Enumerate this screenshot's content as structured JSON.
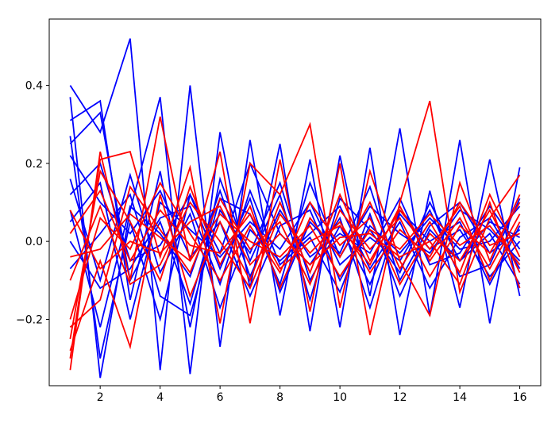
{
  "chart_data": {
    "type": "line",
    "title": "",
    "xlabel": "",
    "ylabel": "",
    "xlim": [
      0.3,
      16.7
    ],
    "ylim": [
      -0.37,
      0.57
    ],
    "xticks": [
      2,
      4,
      6,
      8,
      10,
      12,
      14,
      16
    ],
    "yticks": [
      -0.2,
      0.0,
      0.2,
      0.4
    ],
    "xtick_labels": [
      "2",
      "4",
      "6",
      "8",
      "10",
      "12",
      "14",
      "16"
    ],
    "ytick_labels": [
      "−0.2",
      "0.0",
      "0.2",
      "0.4"
    ],
    "grid": false,
    "legend": null,
    "x": [
      1,
      2,
      3,
      4,
      5,
      6,
      7,
      8,
      9,
      10,
      11,
      12,
      13,
      14,
      15,
      16
    ],
    "series_groups": [
      {
        "color": "#0000ff",
        "lines": [
          [
            0.4,
            0.28,
            0.52,
            -0.33,
            0.4,
            -0.27,
            0.26,
            -0.19,
            0.21,
            -0.22,
            0.24,
            -0.24,
            0.13,
            -0.17,
            0.21,
            -0.14
          ],
          [
            0.37,
            -0.35,
            0.08,
            0.37,
            -0.34,
            0.28,
            -0.12,
            0.25,
            -0.23,
            0.22,
            -0.14,
            0.29,
            -0.19,
            0.26,
            -0.21,
            0.19
          ],
          [
            0.31,
            0.36,
            -0.15,
            0.18,
            -0.22,
            0.16,
            -0.05,
            0.12,
            -0.15,
            0.11,
            0.03,
            -0.08,
            0.1,
            -0.05,
            0.05,
            0.01
          ],
          [
            0.27,
            -0.3,
            0.05,
            -0.2,
            0.12,
            -0.03,
            0.2,
            0.02,
            -0.06,
            0.06,
            -0.17,
            0.08,
            0.0,
            0.05,
            -0.11,
            0.04
          ],
          [
            0.25,
            0.33,
            -0.1,
            0.05,
            -0.16,
            0.11,
            0.07,
            -0.11,
            0.15,
            -0.04,
            0.09,
            0.02,
            -0.03,
            0.08,
            0.03,
            -0.05
          ],
          [
            0.22,
            0.1,
            0.02,
            0.13,
            -0.04,
            0.05,
            -0.14,
            0.04,
            0.08,
            -0.1,
            0.04,
            -0.03,
            0.06,
            -0.02,
            0.0,
            0.09
          ],
          [
            0.16,
            -0.1,
            0.17,
            -0.08,
            0.07,
            -0.17,
            0.03,
            -0.05,
            0.02,
            0.09,
            -0.07,
            0.05,
            -0.12,
            0.01,
            0.06,
            -0.07
          ],
          [
            0.12,
            0.2,
            -0.05,
            -0.01,
            0.12,
            -0.07,
            0.11,
            -0.13,
            0.05,
            -0.03,
            0.14,
            -0.1,
            0.04,
            0.1,
            -0.03,
            0.03
          ],
          [
            0.08,
            -0.22,
            0.09,
            0.02,
            -0.09,
            0.13,
            -0.09,
            0.08,
            -0.04,
            0.02,
            -0.03,
            0.11,
            -0.06,
            -0.03,
            0.09,
            -0.02
          ],
          [
            0.05,
            0.15,
            -0.2,
            0.1,
            0.03,
            -0.04,
            0.05,
            -0.02,
            0.1,
            -0.06,
            0.01,
            -0.05,
            0.08,
            -0.09,
            -0.06,
            0.11
          ],
          [
            -0.07,
            0.02,
            0.12,
            -0.14,
            -0.19,
            0.08,
            -0.03,
            0.15,
            -0.1,
            0.04,
            -0.11,
            0.07,
            -0.02,
            0.03,
            -0.09,
            0.0
          ],
          [
            0.0,
            -0.12,
            -0.07,
            0.06,
            0.09,
            -0.11,
            0.13,
            -0.06,
            0.01,
            -0.13,
            0.07,
            -0.14,
            0.03,
            -0.05,
            0.02,
            -0.11
          ]
        ]
      },
      {
        "color": "#ff0000",
        "lines": [
          [
            -0.33,
            0.23,
            -0.1,
            0.32,
            -0.05,
            0.23,
            -0.21,
            0.21,
            -0.18,
            0.2,
            -0.24,
            0.1,
            0.36,
            -0.13,
            0.06,
            0.17
          ],
          [
            -0.3,
            0.21,
            0.23,
            -0.04,
            0.19,
            -0.21,
            0.2,
            0.12,
            0.3,
            -0.17,
            0.18,
            -0.05,
            -0.19,
            0.15,
            -0.05,
            0.12
          ],
          [
            -0.28,
            -0.05,
            -0.27,
            0.12,
            -0.14,
            0.05,
            -0.1,
            0.1,
            -0.08,
            0.12,
            -0.05,
            0.08,
            -0.02,
            0.09,
            -0.1,
            0.05
          ],
          [
            -0.25,
            0.18,
            0.05,
            -0.1,
            0.14,
            -0.06,
            0.09,
            -0.12,
            0.06,
            -0.04,
            0.1,
            -0.07,
            0.05,
            -0.08,
            0.12,
            -0.04
          ],
          [
            -0.22,
            -0.15,
            0.14,
            0.03,
            -0.08,
            0.11,
            -0.02,
            0.05,
            -0.11,
            0.08,
            -0.02,
            0.06,
            -0.09,
            0.04,
            -0.03,
            0.1
          ],
          [
            -0.2,
            0.06,
            -0.02,
            0.15,
            0.02,
            -0.1,
            0.04,
            -0.08,
            0.1,
            -0.01,
            0.06,
            -0.11,
            0.02,
            -0.05,
            0.08,
            -0.08
          ],
          [
            -0.1,
            0.09,
            -0.11,
            -0.06,
            0.1,
            0.0,
            -0.12,
            0.07,
            -0.03,
            0.05,
            -0.08,
            0.03,
            -0.04,
            0.1,
            -0.01,
            0.02
          ],
          [
            -0.04,
            -0.02,
            0.07,
            0.01,
            -0.05,
            0.07,
            0.0,
            -0.04,
            0.04,
            -0.09,
            0.03,
            -0.02,
            0.07,
            -0.01,
            0.04,
            -0.06
          ],
          [
            0.02,
            0.13,
            -0.05,
            0.08,
            -0.01,
            -0.03,
            0.07,
            -0.07,
            0.0,
            0.04,
            -0.06,
            0.09,
            -0.05,
            0.06,
            -0.07,
            0.07
          ],
          [
            0.08,
            -0.07,
            0.0,
            -0.03,
            0.05,
            0.09,
            -0.06,
            0.02,
            -0.06,
            0.01,
            0.02,
            -0.04,
            0.0,
            -0.11,
            0.1,
            -0.12
          ]
        ]
      }
    ]
  }
}
